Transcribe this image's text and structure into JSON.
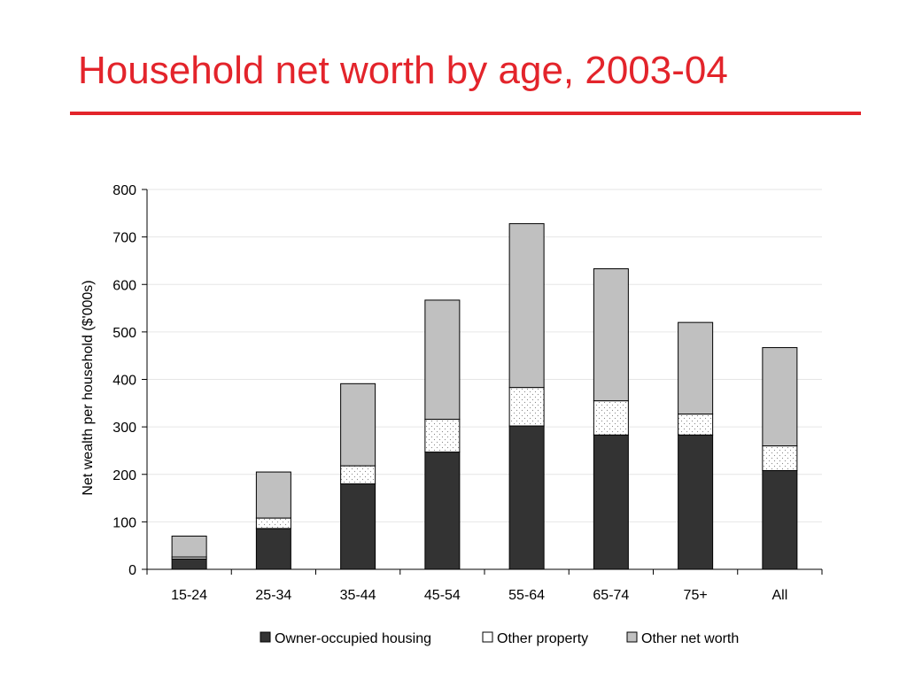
{
  "slide": {
    "title": "Household net worth by age, 2003-04"
  },
  "chart_data": {
    "type": "bar",
    "stacked": true,
    "categories": [
      "15-24",
      "25-34",
      "35-44",
      "45-54",
      "55-64",
      "65-74",
      "75+",
      "All"
    ],
    "series": [
      {
        "name": "Owner-occupied housing",
        "values": [
          22,
          86,
          180,
          247,
          302,
          283,
          283,
          208
        ],
        "color": "#333333",
        "pattern": "solid"
      },
      {
        "name": "Other property",
        "values": [
          4,
          22,
          38,
          69,
          81,
          72,
          44,
          52
        ],
        "color": "#ffffff",
        "pattern": "dotted"
      },
      {
        "name": "Other net worth",
        "values": [
          44,
          97,
          173,
          251,
          345,
          278,
          193,
          207
        ],
        "color": "#c0c0c0",
        "pattern": "solid"
      }
    ],
    "ylabel": "Net wealth per household ($'000s)",
    "xlabel": "",
    "ylim": [
      0,
      800
    ],
    "yticks": [
      0,
      100,
      200,
      300,
      400,
      500,
      600,
      700,
      800
    ],
    "grid": true,
    "legend_position": "bottom"
  }
}
